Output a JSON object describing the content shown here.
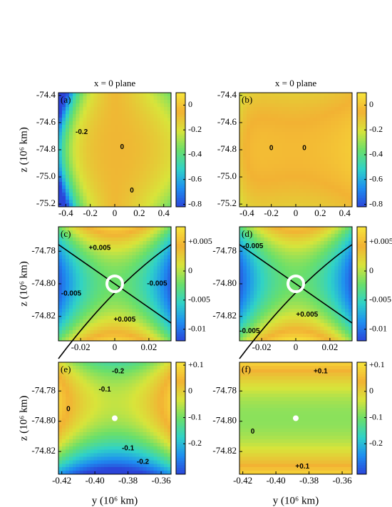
{
  "chart_data": [
    {
      "type": "contour",
      "panel_label": "(a)",
      "title": "x = 0 plane",
      "ylabel": "z (10⁶ km)",
      "xlim": [
        -0.46,
        0.46
      ],
      "xticks": [
        -0.4,
        -0.2,
        0,
        0.2,
        0.4
      ],
      "ylim": [
        -75.22,
        -74.38
      ],
      "yticks": [
        -74.4,
        -74.6,
        -74.8,
        {
          "value": -75.0,
          "label": "-75.0"
        },
        -75.2
      ],
      "clim": [
        -0.82,
        0.1
      ],
      "cticks": [
        0,
        -0.2,
        -0.4,
        -0.6,
        -0.8
      ],
      "colormap": [
        "#2b44d8",
        "#1e8ef0",
        "#2fd2c8",
        "#6adf6a",
        "#d8e43a",
        "#f2b233",
        "#f7e43a"
      ],
      "annotations": [
        {
          "text": "0",
          "x": 0.06,
          "y": -74.78
        },
        {
          "text": "0",
          "x": 0.14,
          "y": -75.1
        },
        {
          "text": "-0.2",
          "x": -0.27,
          "y": -74.67
        }
      ]
    },
    {
      "type": "contour",
      "panel_label": "(b)",
      "title": "x = 0 plane",
      "xlim": [
        -0.46,
        0.46
      ],
      "xticks": [
        -0.4,
        -0.2,
        0,
        0.2,
        0.4
      ],
      "ylim": [
        -75.22,
        -74.38
      ],
      "yticks": [
        -74.4,
        -74.6,
        -74.8,
        {
          "value": -75.0,
          "label": "-75.0"
        },
        -75.2
      ],
      "clim": [
        -0.82,
        0.1
      ],
      "cticks": [
        0,
        -0.2,
        -0.4,
        -0.6,
        -0.8
      ],
      "colormap": [
        "#2b44d8",
        "#1e8ef0",
        "#2fd2c8",
        "#6adf6a",
        "#d8e43a",
        "#f2b233",
        "#f7e43a"
      ],
      "annotations": [
        {
          "text": "0",
          "x": 0.07,
          "y": -74.79
        },
        {
          "text": "0",
          "x": -0.2,
          "y": -74.79
        }
      ]
    },
    {
      "type": "contour",
      "panel_label": "(c)",
      "ylabel": "z (10⁶ km)",
      "xlim": [
        -0.033,
        0.033
      ],
      "xticks": [
        -0.02,
        0,
        0.02
      ],
      "ylim": [
        -74.835,
        -74.765
      ],
      "yticks": [
        -74.78,
        {
          "value": -74.8,
          "label": "-74.80"
        },
        -74.82
      ],
      "clim": [
        -0.012,
        0.0076
      ],
      "cticks": [
        {
          "value": 0.005,
          "label": "+0.005"
        },
        0,
        -0.005,
        -0.01
      ],
      "colormap": [
        "#2b44d8",
        "#1e8ef0",
        "#2fd2c8",
        "#6adf6a",
        "#d8e43a",
        "#f2b233",
        "#f7e43a"
      ],
      "annotations": [
        {
          "text": "+0.005",
          "x": -0.0088,
          "y": -74.778
        },
        {
          "text": "+0.005",
          "x": 0.0058,
          "y": -74.822
        },
        {
          "text": "-0.005",
          "x": -0.0255,
          "y": -74.806
        },
        {
          "text": "-0.005",
          "x": 0.0248,
          "y": -74.8
        }
      ]
    },
    {
      "type": "contour",
      "panel_label": "(d)",
      "xlim": [
        -0.033,
        0.033
      ],
      "xticks": [
        -0.02,
        0,
        0.02
      ],
      "ylim": [
        -74.835,
        -74.765
      ],
      "yticks": [
        -74.78,
        {
          "value": -74.8,
          "label": "-74.80"
        },
        -74.82
      ],
      "clim": [
        -0.012,
        0.0076
      ],
      "cticks": [
        {
          "value": 0.005,
          "label": "+0.005"
        },
        0,
        -0.005,
        -0.01
      ],
      "colormap": [
        "#2b44d8",
        "#1e8ef0",
        "#2fd2c8",
        "#6adf6a",
        "#d8e43a",
        "#f2b233",
        "#f7e43a"
      ],
      "annotations": [
        {
          "text": "-0.005",
          "x": -0.025,
          "y": -74.777
        },
        {
          "text": "+0.005",
          "x": 0.0066,
          "y": -74.819
        },
        {
          "text": "-0.005",
          "x": -0.027,
          "y": -74.829
        }
      ]
    },
    {
      "type": "contour",
      "panel_label": "(e)",
      "ylabel": "z (10⁶ km)",
      "xlabel": "y (10⁶ km)",
      "xlim": [
        -0.422,
        -0.354
      ],
      "xticks": [
        -0.42,
        {
          "value": -0.4,
          "label": "-0.40"
        },
        -0.38,
        -0.36
      ],
      "ylim": [
        -74.835,
        -74.761
      ],
      "yticks": [
        -74.78,
        {
          "value": -74.8,
          "label": "-74.80"
        },
        -74.82
      ],
      "clim": [
        -0.316,
        0.111
      ],
      "cticks": [
        {
          "value": 0.1,
          "label": "+0.1"
        },
        0,
        -0.1,
        -0.2
      ],
      "colormap": [
        "#2b44d8",
        "#1e8ef0",
        "#2fd2c8",
        "#6adf6a",
        "#d8e43a",
        "#f2b233",
        "#f7e43a"
      ],
      "annotations": [
        {
          "text": "-0.2",
          "x": -0.386,
          "y": -74.767
        },
        {
          "text": "-0.1",
          "x": -0.394,
          "y": -74.779
        },
        {
          "text": "0",
          "x": -0.416,
          "y": -74.792
        },
        {
          "text": "-0.1",
          "x": -0.38,
          "y": -74.818
        },
        {
          "text": "-0.2",
          "x": -0.371,
          "y": -74.827
        }
      ]
    },
    {
      "type": "contour",
      "panel_label": "(f)",
      "xlabel": "y (10⁶ km)",
      "xlim": [
        -0.422,
        -0.354
      ],
      "xticks": [
        -0.42,
        {
          "value": -0.4,
          "label": "-0.40"
        },
        -0.38,
        -0.36
      ],
      "ylim": [
        -74.835,
        -74.761
      ],
      "yticks": [
        -74.78,
        {
          "value": -74.8,
          "label": "-74.80"
        },
        -74.82
      ],
      "clim": [
        -0.316,
        0.111
      ],
      "cticks": [
        {
          "value": 0.1,
          "label": "+0.1"
        },
        0,
        -0.1,
        -0.2
      ],
      "colormap": [
        "#2b44d8",
        "#1e8ef0",
        "#2fd2c8",
        "#6adf6a",
        "#d8e43a",
        "#f2b233",
        "#f7e43a"
      ],
      "annotations": [
        {
          "text": "+0.1",
          "x": -0.373,
          "y": -74.767
        },
        {
          "text": "0",
          "x": -0.414,
          "y": -74.807
        },
        {
          "text": "+0.1",
          "x": -0.384,
          "y": -74.83
        }
      ]
    }
  ]
}
